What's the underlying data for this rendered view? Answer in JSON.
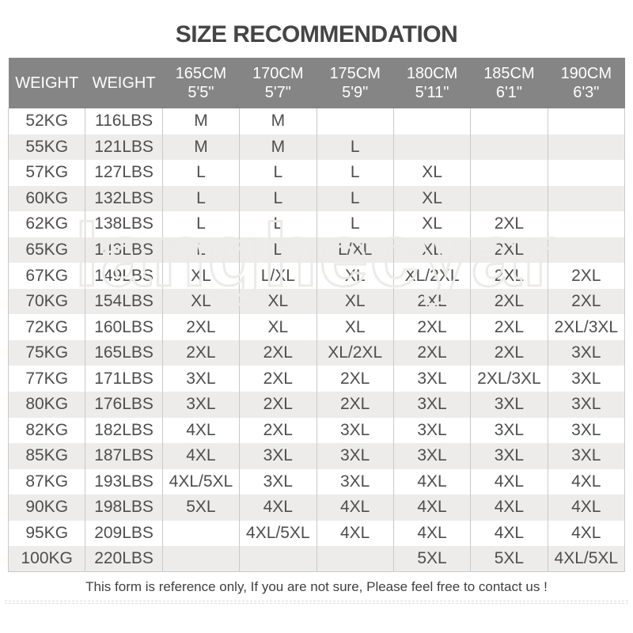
{
  "chart_data": {
    "type": "table",
    "title": "SIZE RECOMMENDATION",
    "columns": [
      {
        "label": "WEIGHT",
        "sub": ""
      },
      {
        "label": "WEIGHT",
        "sub": ""
      },
      {
        "label": "165CM",
        "sub": "5'5\""
      },
      {
        "label": "170CM",
        "sub": "5'7\""
      },
      {
        "label": "175CM",
        "sub": "5'9\""
      },
      {
        "label": "180CM",
        "sub": "5'11\""
      },
      {
        "label": "185CM",
        "sub": "6'1\""
      },
      {
        "label": "190CM",
        "sub": "6'3\""
      }
    ],
    "rows": [
      [
        "52KG",
        "116LBS",
        "M",
        "M",
        "",
        "",
        "",
        ""
      ],
      [
        "55KG",
        "121LBS",
        "M",
        "M",
        "L",
        "",
        "",
        ""
      ],
      [
        "57KG",
        "127LBS",
        "L",
        "L",
        "L",
        "XL",
        "",
        ""
      ],
      [
        "60KG",
        "132LBS",
        "L",
        "L",
        "L",
        "XL",
        "",
        ""
      ],
      [
        "62KG",
        "138LBS",
        "L",
        "L",
        "L",
        "XL",
        "2XL",
        ""
      ],
      [
        "65KG",
        "143LBS",
        "L",
        "L",
        "L/XL",
        "XL",
        "2XL",
        ""
      ],
      [
        "67KG",
        "149LBS",
        "XL",
        "L/XL",
        "XL",
        "XL/2XL",
        "2XL",
        "2XL"
      ],
      [
        "70KG",
        "154LBS",
        "XL",
        "XL",
        "XL",
        "2XL",
        "2XL",
        "2XL"
      ],
      [
        "72KG",
        "160LBS",
        "2XL",
        "XL",
        "XL",
        "2XL",
        "2XL",
        "2XL/3XL"
      ],
      [
        "75KG",
        "165LBS",
        "2XL",
        "2XL",
        "XL/2XL",
        "2XL",
        "2XL",
        "3XL"
      ],
      [
        "77KG",
        "171LBS",
        "3XL",
        "2XL",
        "2XL",
        "3XL",
        "2XL/3XL",
        "3XL"
      ],
      [
        "80KG",
        "176LBS",
        "3XL",
        "2XL",
        "2XL",
        "3XL",
        "3XL",
        "3XL"
      ],
      [
        "82KG",
        "182LBS",
        "4XL",
        "2XL",
        "3XL",
        "3XL",
        "3XL",
        "3XL"
      ],
      [
        "85KG",
        "187LBS",
        "4XL",
        "3XL",
        "3XL",
        "3XL",
        "3XL",
        "3XL"
      ],
      [
        "87KG",
        "193LBS",
        "4XL/5XL",
        "3XL",
        "3XL",
        "4XL",
        "4XL",
        "4XL"
      ],
      [
        "90KG",
        "198LBS",
        "5XL",
        "4XL",
        "4XL",
        "4XL",
        "4XL",
        "4XL"
      ],
      [
        "95KG",
        "209LBS",
        "",
        "4XL/5XL",
        "4XL",
        "4XL",
        "4XL",
        "4XL"
      ],
      [
        "100KG",
        "220LBS",
        "",
        "",
        "",
        "5XL",
        "5XL",
        "4XL/5XL"
      ]
    ]
  },
  "footer": {
    "note": "This form is reference only, If you are not sure, Please feel free to contact us !"
  },
  "watermark": "langhecyar",
  "colors": {
    "header_bg": "#858585",
    "header_text": "#ffffff",
    "cell_text": "#4e4e4e",
    "stripe_bg": "#edecea",
    "divider": "#c9c9c9",
    "title_text": "#454545",
    "footer_text": "#3f3f3f",
    "dash_color": "#dcdcdc",
    "watermark_color": "#ecebe8"
  }
}
